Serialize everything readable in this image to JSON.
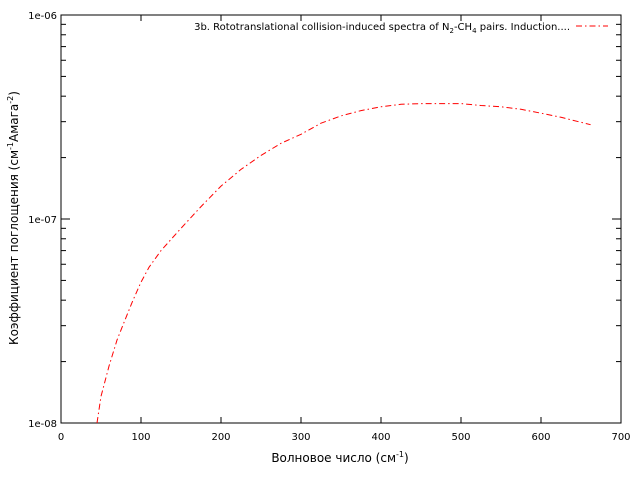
{
  "chart_data": {
    "type": "line",
    "title": "",
    "xlabel": "Волновое число (см",
    "xlabel_sup": "-1",
    "xlabel_end": ")",
    "ylabel_parts": [
      "Коэффициент поглощения (см",
      "-1",
      "Амага",
      "-2",
      ")"
    ],
    "xlim": [
      0,
      700
    ],
    "ylim": [
      1e-08,
      1e-06
    ],
    "yscale": "log",
    "grid": false,
    "legend_position": "top-right",
    "x_ticks": [
      0,
      100,
      200,
      300,
      400,
      500,
      600,
      700
    ],
    "y_ticks": [
      {
        "value": 1e-08,
        "label": "1e-08"
      },
      {
        "value": 1e-07,
        "label": "1e-07"
      },
      {
        "value": 1e-06,
        "label": "1e-06"
      }
    ],
    "series": [
      {
        "name_parts": [
          "3b. Rototranslational collision-induced spectra of N",
          "2",
          "-CH",
          "4",
          " pairs. Induction...."
        ],
        "color": "#ff0000",
        "line_style": "dash-dot",
        "x": [
          45,
          50,
          60,
          70,
          80,
          90,
          100,
          110,
          125,
          150,
          175,
          200,
          225,
          250,
          275,
          300,
          325,
          350,
          375,
          400,
          425,
          450,
          475,
          500,
          525,
          550,
          575,
          600,
          625,
          662
        ],
        "y": [
          1e-08,
          1.35e-08,
          1.9e-08,
          2.55e-08,
          3.2e-08,
          4e-08,
          4.9e-08,
          5.8e-08,
          7e-08,
          9e-08,
          1.15e-07,
          1.45e-07,
          1.75e-07,
          2.05e-07,
          2.35e-07,
          2.6e-07,
          2.95e-07,
          3.2e-07,
          3.4e-07,
          3.55e-07,
          3.65e-07,
          3.68e-07,
          3.68e-07,
          3.68e-07,
          3.6e-07,
          3.55e-07,
          3.45e-07,
          3.3e-07,
          3.15e-07,
          2.9e-07
        ]
      }
    ]
  }
}
